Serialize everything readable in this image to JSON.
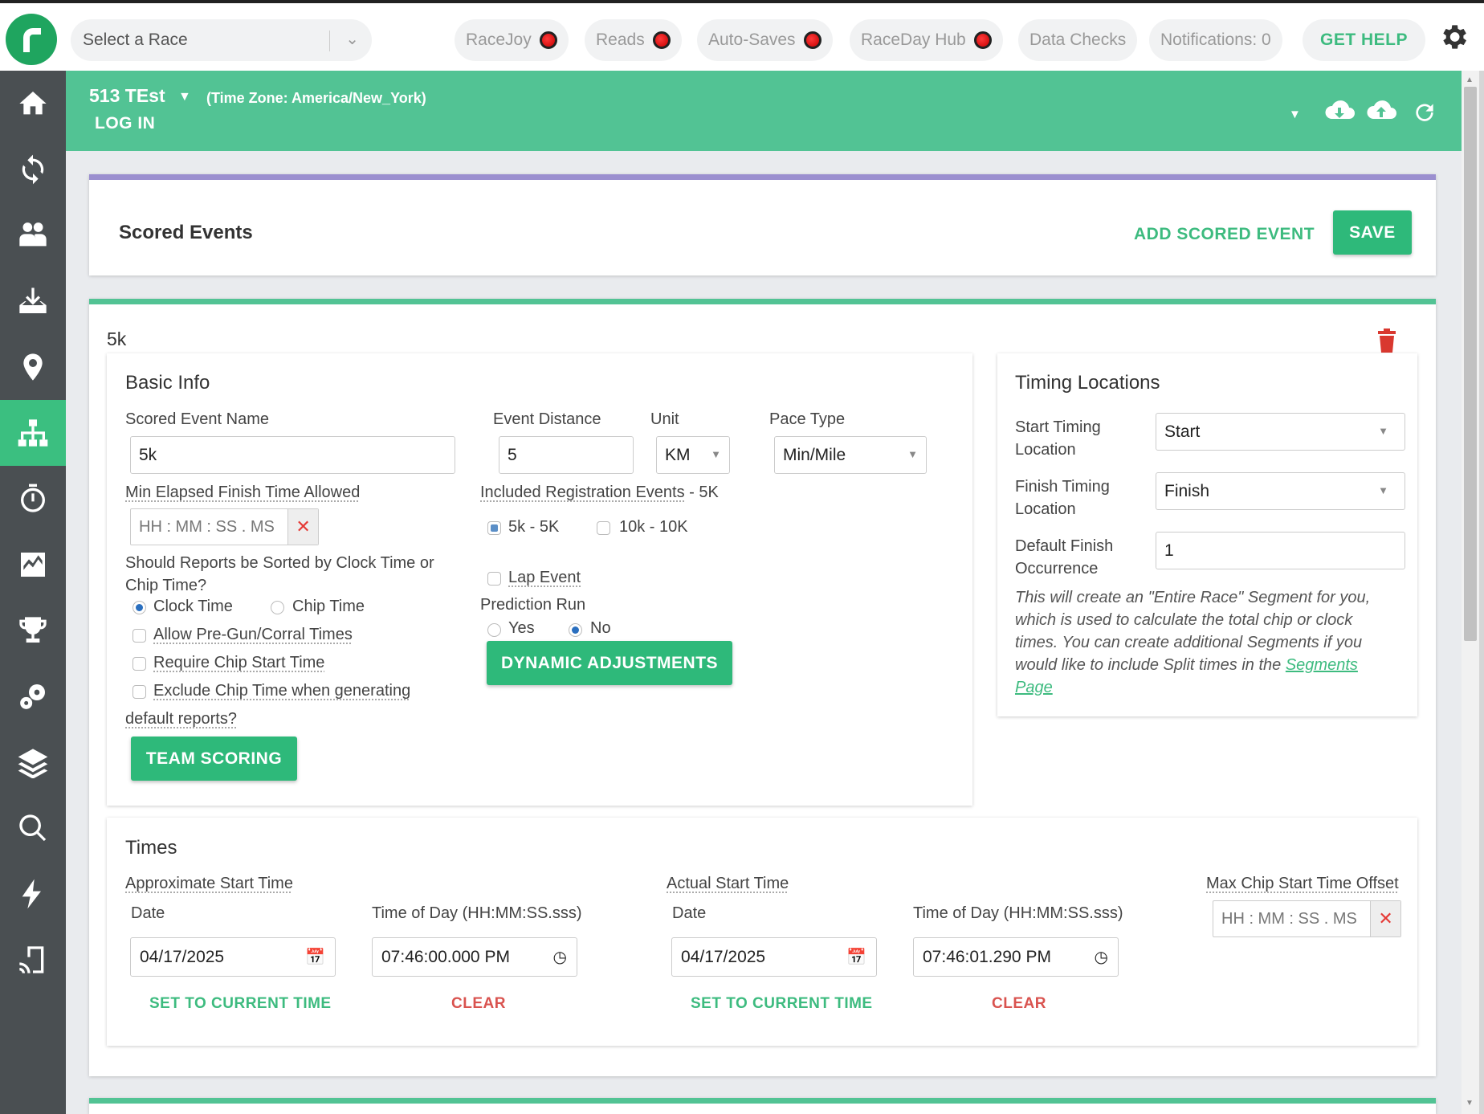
{
  "topbar": {
    "race_select_placeholder": "Select a Race",
    "pills": [
      "RaceJoy",
      "Reads",
      "Auto-Saves",
      "RaceDay Hub",
      "Data Checks",
      "Notifications: 0"
    ],
    "help": "GET HELP"
  },
  "race": {
    "name": "513 TEst",
    "timezone": "(Time Zone: America/New_York)",
    "login": "LOG IN"
  },
  "scored_events": {
    "title": "Scored Events",
    "add_label": "ADD SCORED EVENT",
    "save_label": "SAVE"
  },
  "event": {
    "name": "5k",
    "basic_info": {
      "title": "Basic Info",
      "scored_event_name_label": "Scored Event Name",
      "scored_event_name": "5k",
      "distance_label": "Event Distance",
      "distance": "5",
      "unit_label": "Unit",
      "unit": "KM",
      "pace_label": "Pace Type",
      "pace": "Min/Mile",
      "min_elapsed_label": "Min Elapsed Finish Time Allowed",
      "time_placeholder": "HH : MM : SS . MS",
      "included_reg_label": "Included Registration Events",
      "included_reg_suffix": " - 5K",
      "reg_events": [
        "5k - 5K",
        "10k - 10K"
      ],
      "sort_question_line1": "Should Reports be Sorted by Clock Time or",
      "sort_question_line2": "Chip Time?",
      "clock_time": "Clock Time",
      "chip_time": "Chip Time",
      "allow_pregun": "Allow Pre-Gun/Corral Times",
      "require_chip_start": "Require Chip Start Time",
      "exclude_chip_line1": "Exclude Chip Time when generating",
      "exclude_chip_line2": "default reports?",
      "lap_event": "Lap Event",
      "prediction_run": "Prediction Run",
      "yes": "Yes",
      "no": "No",
      "team_scoring": "TEAM SCORING",
      "dynamic_adjustments": "DYNAMIC ADJUSTMENTS"
    },
    "timing": {
      "title": "Timing Locations",
      "start_label_1": "Start Timing",
      "start_label_2": "Location",
      "start_value": "Start",
      "finish_label_1": "Finish Timing",
      "finish_label_2": "Location",
      "finish_value": "Finish",
      "default_label_1": "Default Finish",
      "default_label_2": "Occurrence",
      "default_value": "1",
      "note_line1": "This will create an \"Entire Race\" Segment for you,",
      "note_line2": "which is used to calculate the total chip or clock",
      "note_line3": "times. You can create additional Segments if you",
      "note_line4": "would like to include Split times in the",
      "note_link1": "Segments",
      "note_link2": "Page"
    },
    "times": {
      "title": "Times",
      "approx_label": "Approximate Start Time",
      "actual_label": "Actual Start Time",
      "max_offset_label": "Max Chip Start Time Offset",
      "date_label": "Date",
      "tod_label": "Time of Day (HH:MM:SS.sss)",
      "approx_date": "04/17/2025",
      "approx_time": "07:46:00.000  PM",
      "actual_date": "04/17/2025",
      "actual_time": "07:46:01.290  PM",
      "offset_placeholder": "HH : MM : SS . MS",
      "set_current": "SET TO CURRENT TIME",
      "clear": "CLEAR"
    }
  }
}
